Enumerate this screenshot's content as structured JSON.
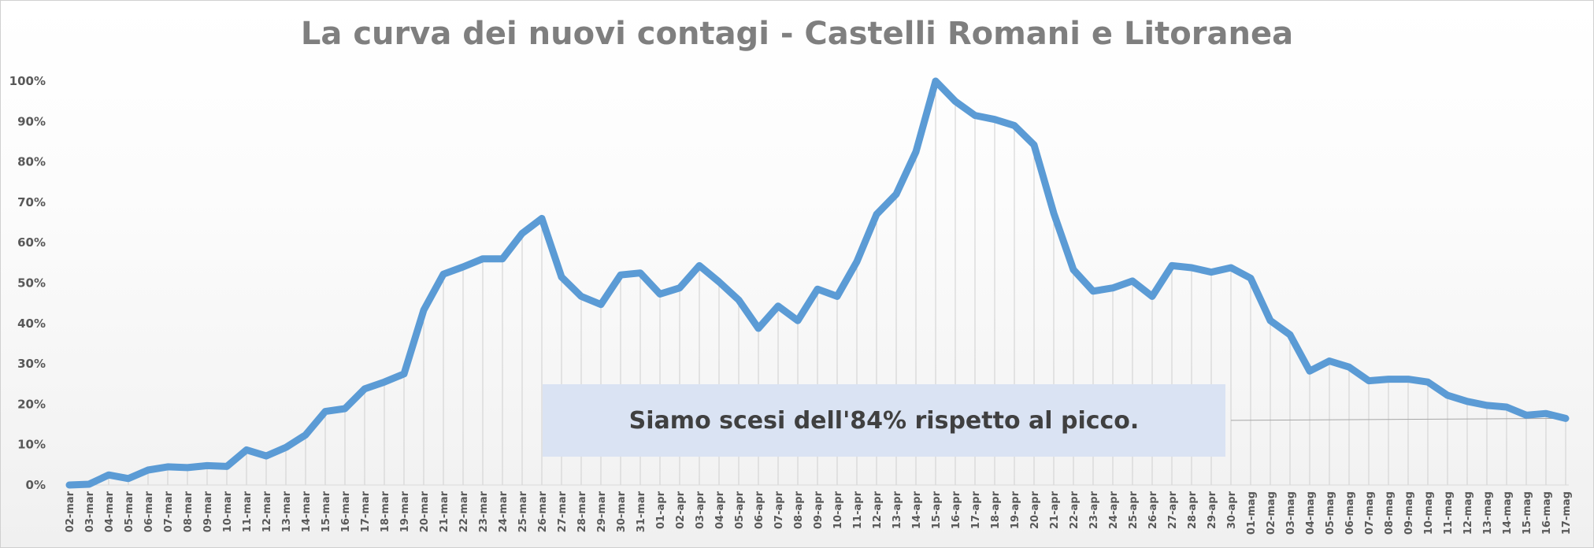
{
  "chart_data": {
    "type": "line",
    "title": "La curva dei nuovi contagi - Castelli Romani e Litoranea",
    "xlabel": "",
    "ylabel": "",
    "ylim": [
      0,
      100
    ],
    "yticks": [
      "0%",
      "10%",
      "20%",
      "30%",
      "40%",
      "50%",
      "60%",
      "70%",
      "80%",
      "90%",
      "100%"
    ],
    "categories": [
      "02-mar",
      "03-mar",
      "04-mar",
      "05-mar",
      "06-mar",
      "07-mar",
      "08-mar",
      "09-mar",
      "10-mar",
      "11-mar",
      "12-mar",
      "13-mar",
      "14-mar",
      "15-mar",
      "16-mar",
      "17-mar",
      "18-mar",
      "19-mar",
      "20-mar",
      "21-mar",
      "22-mar",
      "23-mar",
      "24-mar",
      "25-mar",
      "26-mar",
      "27-mar",
      "28-mar",
      "29-mar",
      "30-mar",
      "31-mar",
      "01-apr",
      "02-apr",
      "03-apr",
      "04-apr",
      "05-apr",
      "06-apr",
      "07-apr",
      "08-apr",
      "09-apr",
      "10-apr",
      "11-apr",
      "12-apr",
      "13-apr",
      "14-apr",
      "15-apr",
      "16-apr",
      "17-apr",
      "18-apr",
      "19-apr",
      "20-apr",
      "21-apr",
      "22-apr",
      "23-apr",
      "24-apr",
      "25-apr",
      "26-apr",
      "27-apr",
      "28-apr",
      "29-apr",
      "30-apr",
      "01-mag",
      "02-mag",
      "03-mag",
      "04-mag",
      "05-mag",
      "06-mag",
      "07-mag",
      "08-mag",
      "09-mag",
      "10-mag",
      "11-mag",
      "12-mag",
      "13-mag",
      "14-mag",
      "15-mag",
      "16-mag",
      "17-mag"
    ],
    "series": [
      {
        "values": [
          0,
          0.2,
          2.5,
          1.6,
          3.7,
          4.5,
          4.3,
          4.8,
          4.6,
          8.7,
          7.2,
          9.3,
          12.4,
          18.2,
          18.9,
          23.8,
          25.5,
          27.5,
          43.3,
          52.2,
          54.0,
          56.0,
          56.0,
          62.3,
          66.0,
          51.5,
          46.7,
          44.7,
          52.0,
          52.5,
          47.3,
          48.8,
          54.3,
          50.3,
          45.8,
          38.8,
          44.3,
          40.7,
          48.5,
          46.7,
          55.3,
          67.0,
          72.0,
          82.5,
          100,
          95.0,
          91.5,
          90.5,
          89.0,
          84.2,
          67.3,
          53.3,
          48.0,
          48.8,
          50.5,
          46.7,
          54.3,
          53.8,
          52.7,
          53.8,
          51.2,
          40.7,
          37.2,
          28.2,
          30.7,
          29.2,
          25.8,
          26.2,
          26.2,
          25.5,
          22.2,
          20.7,
          19.7,
          19.3,
          17.3,
          17.7,
          16.5
        ],
        "color": "#5b9bd5"
      }
    ],
    "trendline": {
      "color": "#a6a6a6",
      "start_category": "30-apr",
      "start_value": 16,
      "end_category": "17-mag",
      "end_value": 16.5
    },
    "grid": "vertical-drop-lines",
    "legend": "none",
    "annotation": "Siamo scesi dell'84% rispetto al picco."
  }
}
